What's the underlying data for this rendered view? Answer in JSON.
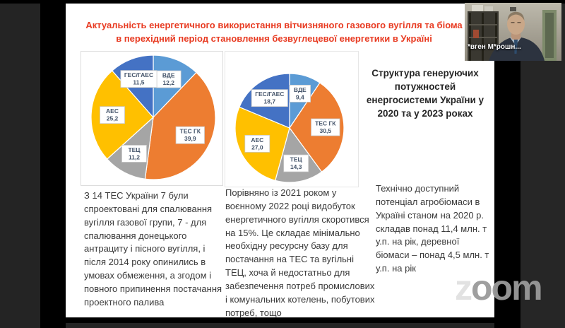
{
  "app": "zoom",
  "slide": {
    "title_line1": "Актуальність енергетичного використання вітчизняного газового вугілля та біома",
    "title_line2": "в перехідний період становлення безвуглецевої енергетики в Україні",
    "title_color": "#e83b22",
    "right_header": "Структура генеруючих потужностей енергосистеми України у 2020 та у 2023 роках",
    "text_left": "З 14 ТЕС України 7 були спроектовані для спалювання вугілля газової групи, 7 - для спалювання донецького антрациту і пісного вугілля, і після 2014 року опинились в умовах обмеження, а згодом і повного припинення постачання проектного палива",
    "text_middle": "Порівняно із 2021 роком у воєнному 2022 році видобуток енергетичного вугілля скоротився на 15%. Це складає мінімально необхідну ресурсну базу для постачання на ТЕС та вугільні ТЕЦ, хоча й недостатньо для забезпечення потреб промислових і комунальних котелень, побутових потреб, тощо",
    "text_right": "Технічно доступний потенціал агробіомаси в Україні станом на 2020 р. складав понад 11,4 млн. т у.п. на рік, деревної біомаси – понад 4,5 млн. т у.п. на рік"
  },
  "chart_data": [
    {
      "type": "pie",
      "title": "Структура генеруючих потужностей енергосистеми України у 2020 році",
      "categories": [
        "ВДЕ",
        "ТЕС ГК",
        "ТЕЦ",
        "АЕС",
        "ГЕС/ГАЕС"
      ],
      "values": [
        12.2,
        39.9,
        11.2,
        25.2,
        11.5
      ],
      "value_labels": [
        "12,2",
        "39,9",
        "11,2",
        "25,2",
        "11,5"
      ],
      "colors": [
        "#5b9bd5",
        "#ed7d31",
        "#a5a5a5",
        "#ffc000",
        "#4472c4"
      ],
      "start_angle_deg": 0,
      "direction": "clockwise",
      "legend": "none",
      "label_box": {
        "fill": "#ffffff",
        "border": "#c9c9c9",
        "text_color": "#44546a"
      }
    },
    {
      "type": "pie",
      "title": "Структура генеруючих потужностей енергосистеми України у 2023 році",
      "categories": [
        "ВДЕ",
        "ТЕС ГК",
        "ТЕЦ",
        "АЕС",
        "ГЕС/ГАЕС"
      ],
      "values": [
        9.4,
        30.5,
        14.3,
        27.0,
        18.7
      ],
      "value_labels": [
        "9,4",
        "30,5",
        "14,3",
        "27,0",
        "18,7"
      ],
      "colors": [
        "#5b9bd5",
        "#ed7d31",
        "#a5a5a5",
        "#ffc000",
        "#4472c4"
      ],
      "start_angle_deg": 0,
      "direction": "clockwise",
      "legend": "none",
      "label_box": {
        "fill": "#ffffff",
        "border": "#c9c9c9",
        "text_color": "#44546a"
      }
    }
  ],
  "video": {
    "participant_name": "*вген М*рошн..."
  },
  "watermark": {
    "part1": "z",
    "part2": "oom"
  }
}
